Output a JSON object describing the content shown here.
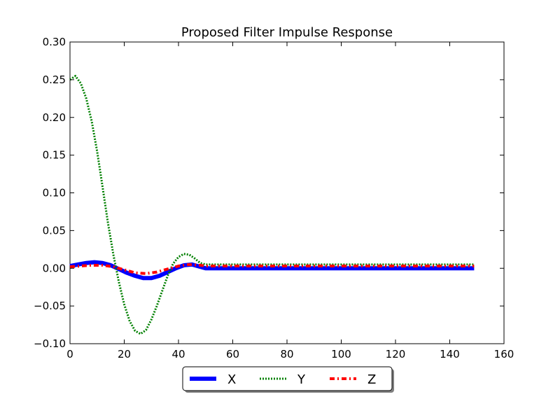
{
  "chart_data": {
    "type": "line",
    "title": "Proposed Filter Impulse Response",
    "xlabel": "",
    "ylabel": "",
    "xlim": [
      0,
      160
    ],
    "ylim": [
      -0.1,
      0.3
    ],
    "x_ticks": [
      0,
      20,
      40,
      60,
      80,
      100,
      120,
      140,
      160
    ],
    "x_tick_labels": [
      "0",
      "20",
      "40",
      "60",
      "80",
      "100",
      "120",
      "140",
      "160"
    ],
    "y_ticks": [
      -0.1,
      -0.05,
      0.0,
      0.05,
      0.1,
      0.15,
      0.2,
      0.25,
      0.3
    ],
    "y_tick_labels": [
      "−0.10",
      "−0.05",
      "0.00",
      "0.05",
      "0.10",
      "0.15",
      "0.20",
      "0.25",
      "0.30"
    ],
    "grid": false,
    "legend_position": "bottom-center",
    "series": [
      {
        "name": "X",
        "color": "#0000ff",
        "style": "solid",
        "x": [
          0,
          3,
          6,
          9,
          12,
          15,
          18,
          21,
          24,
          27,
          30,
          33,
          36,
          39,
          42,
          45,
          48,
          50,
          60,
          80,
          100,
          120,
          149
        ],
        "y": [
          0.003,
          0.005,
          0.007,
          0.008,
          0.007,
          0.004,
          -0.001,
          -0.006,
          -0.01,
          -0.013,
          -0.013,
          -0.01,
          -0.005,
          0.0,
          0.004,
          0.005,
          0.002,
          0.0,
          0.0,
          0.0,
          0.0,
          0.0,
          0.0
        ]
      },
      {
        "name": "Y",
        "color": "#008000",
        "style": "dotted",
        "x": [
          0,
          2,
          4,
          6,
          8,
          10,
          12,
          14,
          16,
          18,
          20,
          22,
          24,
          26,
          28,
          30,
          32,
          34,
          36,
          38,
          40,
          42,
          44,
          46,
          48,
          50,
          60,
          80,
          100,
          120,
          149
        ],
        "y": [
          0.25,
          0.255,
          0.245,
          0.225,
          0.195,
          0.155,
          0.108,
          0.06,
          0.018,
          -0.018,
          -0.048,
          -0.07,
          -0.083,
          -0.087,
          -0.082,
          -0.068,
          -0.05,
          -0.03,
          -0.01,
          0.006,
          0.015,
          0.019,
          0.018,
          0.013,
          0.007,
          0.005,
          0.005,
          0.005,
          0.005,
          0.005,
          0.005
        ]
      },
      {
        "name": "Z",
        "color": "#ff0000",
        "style": "dashdot",
        "x": [
          0,
          4,
          8,
          12,
          16,
          20,
          24,
          28,
          32,
          36,
          40,
          44,
          48,
          50,
          60,
          80,
          100,
          120,
          149
        ],
        "y": [
          0.002,
          0.003,
          0.004,
          0.004,
          0.002,
          -0.002,
          -0.006,
          -0.007,
          -0.005,
          -0.001,
          0.003,
          0.005,
          0.004,
          0.003,
          0.003,
          0.003,
          0.003,
          0.003,
          0.003
        ]
      }
    ]
  }
}
